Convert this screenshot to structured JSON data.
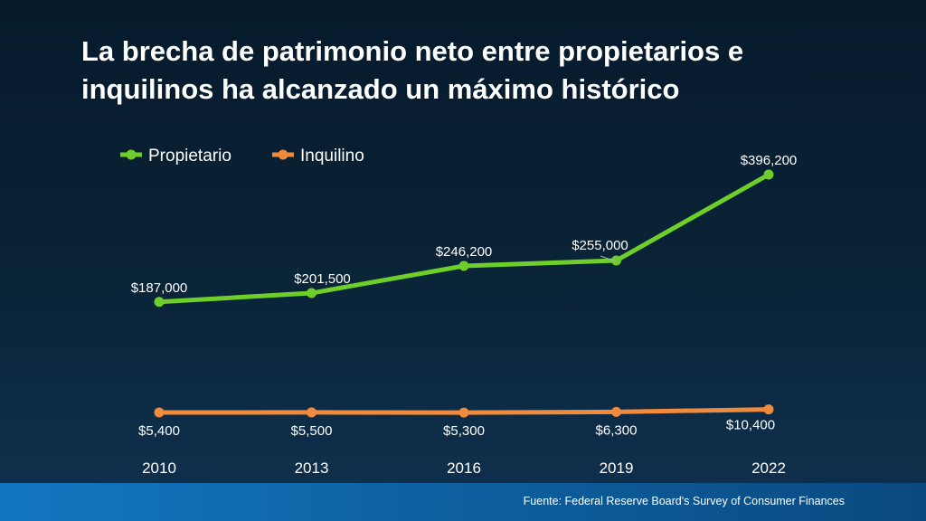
{
  "title": "La brecha de patrimonio neto entre propietarios e inquilinos ha alcanzado un máximo histórico",
  "source": "Fuente: Federal Reserve Board's Survey of Consumer Finances",
  "colors": {
    "propietario": "#6fcf2a",
    "inquilino": "#f08a3c"
  },
  "chart_data": {
    "type": "line",
    "title": "La brecha de patrimonio neto entre propietarios e inquilinos ha alcanzado un máximo histórico",
    "x": [
      "2010",
      "2013",
      "2016",
      "2019",
      "2022"
    ],
    "series": [
      {
        "name": "Propietario",
        "values": [
          187000,
          201500,
          246200,
          255000,
          396200
        ],
        "labels": [
          "$187,000",
          "$201,500",
          "$246,200",
          "$255,000",
          "$396,200"
        ]
      },
      {
        "name": "Inquilino",
        "values": [
          5400,
          5500,
          5300,
          6300,
          10400
        ],
        "labels": [
          "$5,400",
          "$5,500",
          "$5,300",
          "$6,300",
          "$10,400"
        ]
      }
    ],
    "legend_position": "top-left",
    "grid": false,
    "xlabel": "",
    "ylabel": ""
  }
}
